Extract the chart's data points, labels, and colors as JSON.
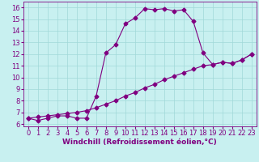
{
  "xlabel": "Windchill (Refroidissement éolien,°C)",
  "bg_color": "#c8f0f0",
  "line_color": "#800080",
  "grid_color": "#a0d8d8",
  "xlim": [
    -0.5,
    23.5
  ],
  "ylim": [
    5.8,
    16.5
  ],
  "xticks": [
    0,
    1,
    2,
    3,
    4,
    5,
    6,
    7,
    8,
    9,
    10,
    11,
    12,
    13,
    14,
    15,
    16,
    17,
    18,
    19,
    20,
    21,
    22,
    23
  ],
  "yticks": [
    6,
    7,
    8,
    9,
    10,
    11,
    12,
    13,
    14,
    15,
    16
  ],
  "line1_x": [
    0,
    1,
    2,
    3,
    4,
    5,
    6,
    7,
    8,
    9,
    10,
    11,
    12,
    13,
    14,
    15,
    16,
    17,
    18,
    19,
    20,
    21,
    22,
    23
  ],
  "line1_y": [
    6.5,
    6.3,
    6.5,
    6.7,
    6.7,
    6.5,
    6.5,
    8.4,
    12.1,
    12.8,
    14.6,
    15.1,
    15.9,
    15.8,
    15.9,
    15.7,
    15.8,
    14.8,
    12.1,
    11.1,
    11.3,
    11.2,
    11.5,
    12.0
  ],
  "line2_x": [
    0,
    1,
    2,
    3,
    4,
    5,
    6,
    7,
    8,
    9,
    10,
    11,
    12,
    13,
    14,
    15,
    16,
    17,
    18,
    19,
    20,
    21,
    22,
    23
  ],
  "line2_y": [
    6.5,
    6.6,
    6.7,
    6.8,
    6.9,
    7.0,
    7.15,
    7.4,
    7.7,
    8.0,
    8.4,
    8.7,
    9.1,
    9.4,
    9.8,
    10.1,
    10.4,
    10.7,
    11.0,
    11.1,
    11.3,
    11.2,
    11.5,
    12.0
  ],
  "marker_size": 2.5,
  "xlabel_fontsize": 6.5,
  "tick_fontsize": 6.0,
  "linewidth": 0.8
}
